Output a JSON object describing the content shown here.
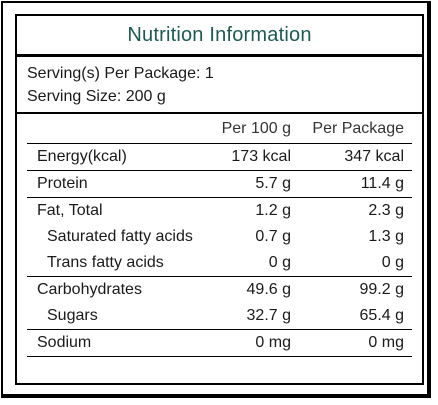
{
  "title": "Nutrition Information",
  "servings_per_package": "Serving(s) Per Package: 1",
  "serving_size": "Serving Size: 200 g",
  "columns": [
    "Per 100 g",
    "Per Package"
  ],
  "rows": [
    {
      "name": "Energy(kcal)",
      "per100": "173 kcal",
      "perPackage": "347 kcal"
    },
    {
      "name": "Protein",
      "per100": "5.7 g",
      "perPackage": "11.4 g"
    },
    {
      "name": "Fat, Total",
      "per100": "1.2 g",
      "perPackage": "2.3 g"
    },
    {
      "name": "Saturated fatty acids",
      "per100": "0.7 g",
      "perPackage": "1.3 g"
    },
    {
      "name": "Trans fatty acids",
      "per100": "0 g",
      "perPackage": "0 g"
    },
    {
      "name": "Carbohydrates",
      "per100": "49.6 g",
      "perPackage": "99.2 g"
    },
    {
      "name": "Sugars",
      "per100": "32.7 g",
      "perPackage": "65.4 g"
    },
    {
      "name": "Sodium",
      "per100": "0 mg",
      "perPackage": "0 mg"
    }
  ],
  "colors": {
    "title": "#1e5a55",
    "text": "#1a1a1a",
    "border": "#000000"
  }
}
